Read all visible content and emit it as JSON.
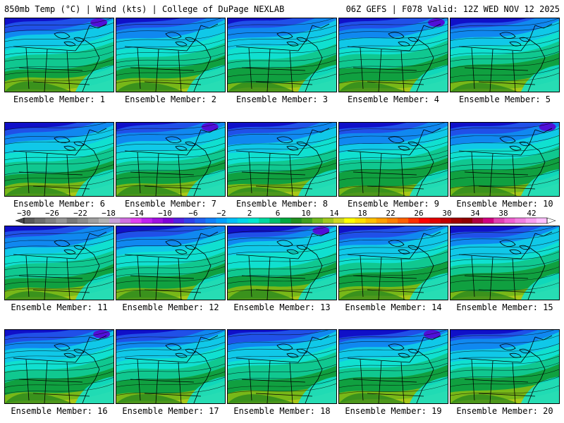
{
  "header": {
    "left": "850mb Temp (°C) | Wind (kts) | College of DuPage NEXLAB",
    "right": "06Z GEFS | F078 Valid: 12Z WED NOV 12 2025"
  },
  "members": [
    {
      "label": "Ensemble Member: 1"
    },
    {
      "label": "Ensemble Member: 2"
    },
    {
      "label": "Ensemble Member: 3"
    },
    {
      "label": "Ensemble Member: 4"
    },
    {
      "label": "Ensemble Member: 5"
    },
    {
      "label": "Ensemble Member: 6"
    },
    {
      "label": "Ensemble Member: 7"
    },
    {
      "label": "Ensemble Member: 8"
    },
    {
      "label": "Ensemble Member: 9"
    },
    {
      "label": "Ensemble Member: 10"
    },
    {
      "label": "Ensemble Member: 11"
    },
    {
      "label": "Ensemble Member: 12"
    },
    {
      "label": "Ensemble Member: 13"
    },
    {
      "label": "Ensemble Member: 14"
    },
    {
      "label": "Ensemble Member: 15"
    },
    {
      "label": "Ensemble Member: 16"
    },
    {
      "label": "Ensemble Member: 17"
    },
    {
      "label": "Ensemble Member: 18"
    },
    {
      "label": "Ensemble Member: 19"
    },
    {
      "label": "Ensemble Member: 20"
    }
  ],
  "colorbar": {
    "labels": [
      "−30",
      "−26",
      "−22",
      "−18",
      "−14",
      "−10",
      "−6",
      "−2",
      "2",
      "6",
      "10",
      "14",
      "18",
      "22",
      "26",
      "30",
      "34",
      "38",
      "42"
    ],
    "colors": [
      "#5a5a5a",
      "#6e6e6e",
      "#828282",
      "#969696",
      "#7a7a7a",
      "#8c8c8c",
      "#a0a0a0",
      "#b4b4b4",
      "#c8a0d8",
      "#d070e0",
      "#e040f0",
      "#c020f0",
      "#a010e0",
      "#8000d8",
      "#5020e0",
      "#3040e8",
      "#2060f0",
      "#1080f8",
      "#00a0ff",
      "#00c0f8",
      "#00d8e8",
      "#00e8d0",
      "#00d8a0",
      "#00c070",
      "#00a840",
      "#209020",
      "#40a020",
      "#70b820",
      "#a0c820",
      "#d0d820",
      "#ffff00",
      "#ffe000",
      "#ffc000",
      "#ffa000",
      "#ff8000",
      "#ff6000",
      "#ff3000",
      "#ff0000",
      "#e00000",
      "#c00000",
      "#a00000",
      "#900000",
      "#b00040",
      "#d00080",
      "#e040b0",
      "#f060d0",
      "#f080e0",
      "#f8a0f0",
      "#ffc0ff"
    ]
  },
  "map_colors": {
    "deep_blue": "#1010c8",
    "blue": "#2050e8",
    "light_blue": "#1088f0",
    "cyan": "#10c8e8",
    "aqua": "#10e0d0",
    "teal": "#10c890",
    "green": "#10a040",
    "dark_green": "#107820",
    "yellow_green": "#78b818",
    "lime": "#a8c818",
    "purple": "#5010d8"
  },
  "icons": {
    "arrow_left": "colorbar-left-arrow-icon",
    "arrow_right": "colorbar-right-arrow-icon"
  }
}
